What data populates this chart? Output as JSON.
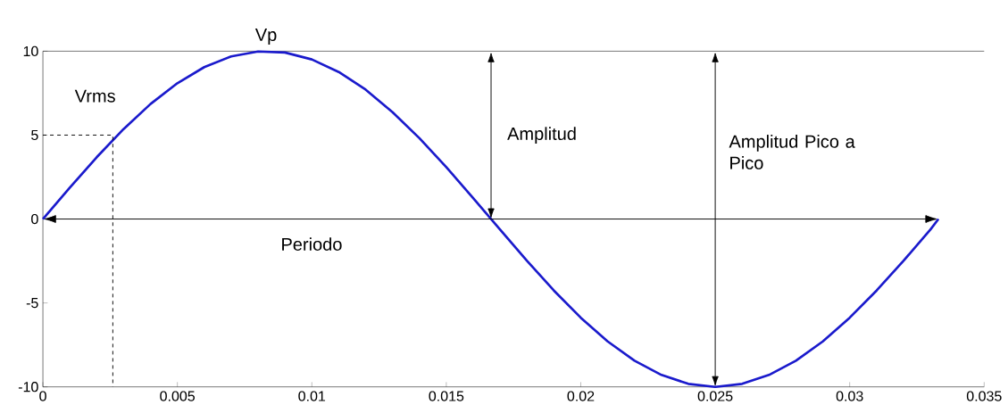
{
  "chart_data": {
    "type": "line",
    "series": [
      {
        "color": "#1a1acc",
        "line_style": "solid",
        "x": [
          0,
          0.001,
          0.002,
          0.003,
          0.004,
          0.005,
          0.006,
          0.007,
          0.008,
          0.009,
          0.01,
          0.011,
          0.012,
          0.013,
          0.014,
          0.015,
          0.016,
          0.017,
          0.018,
          0.019,
          0.02,
          0.021,
          0.022,
          0.023,
          0.024,
          0.025,
          0.026,
          0.027,
          0.028,
          0.029,
          0.03,
          0.031,
          0.032,
          0.033,
          0.0333
        ],
        "values": [
          0,
          1.87,
          3.68,
          5.36,
          6.85,
          8.09,
          9.05,
          9.69,
          9.98,
          9.92,
          9.51,
          8.76,
          7.71,
          6.37,
          4.82,
          3.09,
          1.25,
          -0.63,
          -2.49,
          -4.26,
          -5.88,
          -7.29,
          -8.44,
          -9.29,
          -9.82,
          -10,
          -9.82,
          -9.29,
          -8.44,
          -7.29,
          -5.88,
          -4.26,
          -2.49,
          -0.63,
          0
        ]
      },
      {
        "color": "#000000",
        "line_style": "dashed",
        "x": [
          0,
          0.0026,
          0.0026
        ],
        "values": [
          5,
          5,
          -10
        ]
      }
    ],
    "xlim": [
      0,
      0.035
    ],
    "xticks": [
      0,
      0.005,
      0.01,
      0.015,
      0.02,
      0.025,
      0.03,
      0.035
    ],
    "ylim": [
      -10,
      10
    ],
    "yticks": [
      -10,
      -5,
      0,
      5,
      10
    ],
    "annotations": [
      {
        "text": "Vp",
        "x": 0.0083,
        "y": 10
      },
      {
        "text": "Vrms",
        "x": 0.0026,
        "y": 5
      },
      "Amplitud",
      "Amplitud Pico a Pico",
      "Periodo"
    ]
  }
}
